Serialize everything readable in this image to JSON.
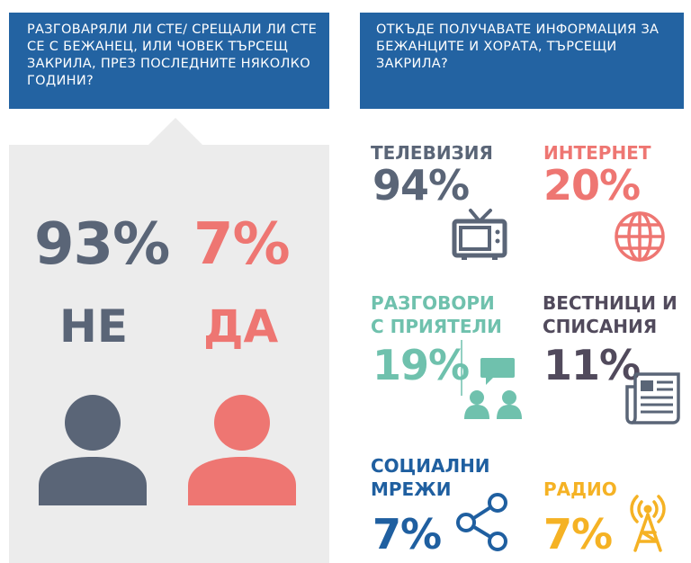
{
  "left_question": "РАЗГОВАРЯЛИ ЛИ СТЕ/ СРЕЩАЛИ ЛИ СТЕ СЕ С БЕЖАНЕЦ, ИЛИ ЧОВЕК ТЪРСЕЩ ЗАКРИЛА, ПРЕЗ ПОСЛЕДНИТЕ НЯКОЛКО ГОДИНИ?",
  "right_question": "ОТКЪДЕ ПОЛУЧАВАТЕ ИНФОРМАЦИЯ ЗА БЕЖАНЦИТЕ И ХОРАТА, ТЪРСЕЩИ ЗАКРИЛА?",
  "answers": {
    "no": {
      "value": "93%",
      "label": "НЕ",
      "color": "#5a6577"
    },
    "yes": {
      "value": "7%",
      "label": "ДА",
      "color": "#ee7672"
    }
  },
  "sources": {
    "tv": {
      "label": "ТЕЛЕВИЗИЯ",
      "value": "94%",
      "icon": "tv-icon",
      "color": "#5a6577"
    },
    "internet": {
      "label": "ИНТЕРНЕТ",
      "value": "20%",
      "icon": "globe-icon",
      "color": "#ee7672"
    },
    "friends": {
      "label_1": "РАЗГОВОРИ",
      "label_2": "С ПРИЯТЕЛИ",
      "value": "19%",
      "icon": "people-chat-icon",
      "color": "#6fc1ad"
    },
    "newspapers": {
      "label_1": "ВЕСТНИЦИ И",
      "label_2": "СПИСАНИЯ",
      "value": "11%",
      "icon": "newspaper-icon",
      "color": "#514a5c"
    },
    "social": {
      "label_1": "СОЦИАЛНИ",
      "label_2": "МРЕЖИ",
      "value": "7%",
      "icon": "share-icon",
      "color": "#1f5fa0"
    },
    "radio": {
      "label": "РАДИО",
      "value": "7%",
      "icon": "radio-tower-icon",
      "color": "#f5b224"
    }
  },
  "colors": {
    "header_bg": "#2363a2",
    "panel_bg": "#ececec"
  }
}
